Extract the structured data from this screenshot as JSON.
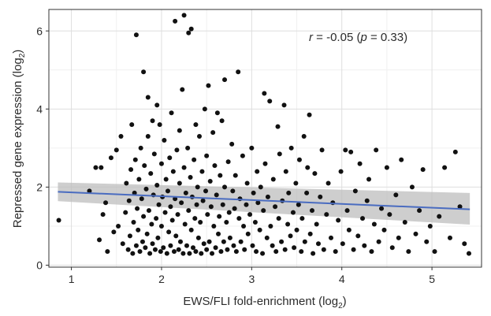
{
  "chart_data": {
    "type": "scatter",
    "xlabel": {
      "main": "EWS/FLI fold-enrichment (log",
      "sub": "2",
      "close": ")"
    },
    "ylabel": {
      "main": "Repressed gene expression (log",
      "sub": "2",
      "close": ")"
    },
    "xlim": [
      0.75,
      5.55
    ],
    "ylim": [
      -0.05,
      6.55
    ],
    "xticks": [
      {
        "value": 1,
        "label": "1"
      },
      {
        "value": 2,
        "label": "2"
      },
      {
        "value": 3,
        "label": "3"
      },
      {
        "value": 4,
        "label": "4"
      },
      {
        "value": 5,
        "label": "5"
      }
    ],
    "yticks": [
      {
        "value": 0,
        "label": "0"
      },
      {
        "value": 2,
        "label": "2"
      },
      {
        "value": 4,
        "label": "4"
      },
      {
        "value": 6,
        "label": "6"
      }
    ],
    "grid": true,
    "annotation": {
      "r_symbol": "r",
      "text": " = -0.05 (",
      "p_symbol": "p",
      "text2": " = 0.33)"
    },
    "regression": {
      "x": [
        0.85,
        5.42
      ],
      "y": [
        1.88,
        1.43
      ],
      "ci_upper": [
        2.12,
        1.85
      ],
      "ci_lower": [
        1.64,
        1.04
      ],
      "color": "#4a6cc0",
      "band_color": "#bdbdbd"
    },
    "point_color": "#111111",
    "points": [
      [
        0.86,
        1.15
      ],
      [
        1.2,
        1.9
      ],
      [
        1.27,
        2.5
      ],
      [
        1.31,
        0.65
      ],
      [
        1.33,
        2.5
      ],
      [
        1.35,
        1.3
      ],
      [
        1.38,
        1.6
      ],
      [
        1.4,
        0.35
      ],
      [
        1.44,
        2.75
      ],
      [
        1.47,
        0.85
      ],
      [
        1.5,
        2.95
      ],
      [
        1.52,
        1.0
      ],
      [
        1.55,
        3.3
      ],
      [
        1.57,
        0.55
      ],
      [
        1.6,
        1.35
      ],
      [
        1.61,
        2.1
      ],
      [
        1.63,
        0.4
      ],
      [
        1.64,
        1.65
      ],
      [
        1.65,
        0.75
      ],
      [
        1.66,
        2.45
      ],
      [
        1.67,
        3.6
      ],
      [
        1.68,
        0.3
      ],
      [
        1.69,
        1.1
      ],
      [
        1.7,
        1.85
      ],
      [
        1.71,
        2.7
      ],
      [
        1.72,
        0.5
      ],
      [
        1.72,
        5.9
      ],
      [
        1.73,
        1.45
      ],
      [
        1.74,
        0.9
      ],
      [
        1.75,
        2.2
      ],
      [
        1.76,
        0.35
      ],
      [
        1.77,
        3.0
      ],
      [
        1.78,
        1.7
      ],
      [
        1.79,
        0.6
      ],
      [
        1.8,
        4.95
      ],
      [
        1.8,
        1.25
      ],
      [
        1.81,
        2.55
      ],
      [
        1.82,
        0.45
      ],
      [
        1.83,
        1.95
      ],
      [
        1.84,
        0.8
      ],
      [
        1.85,
        3.3
      ],
      [
        1.85,
        4.3
      ],
      [
        1.86,
        1.4
      ],
      [
        1.87,
        0.3
      ],
      [
        1.88,
        2.35
      ],
      [
        1.89,
        1.05
      ],
      [
        1.9,
        3.7
      ],
      [
        1.9,
        0.55
      ],
      [
        1.91,
        1.8
      ],
      [
        1.92,
        2.85
      ],
      [
        1.93,
        0.4
      ],
      [
        1.94,
        1.2
      ],
      [
        1.95,
        4.1
      ],
      [
        1.95,
        2.05
      ],
      [
        1.96,
        0.7
      ],
      [
        1.97,
        1.55
      ],
      [
        1.98,
        3.6
      ],
      [
        1.99,
        0.35
      ],
      [
        2.0,
        2.6
      ],
      [
        2.0,
        1.0
      ],
      [
        2.01,
        1.75
      ],
      [
        2.02,
        0.45
      ],
      [
        2.03,
        3.2
      ],
      [
        2.04,
        1.35
      ],
      [
        2.05,
        2.2
      ],
      [
        2.06,
        0.3
      ],
      [
        2.07,
        1.9
      ],
      [
        2.08,
        0.85
      ],
      [
        2.09,
        2.75
      ],
      [
        2.1,
        1.5
      ],
      [
        2.1,
        0.5
      ],
      [
        2.11,
        3.9
      ],
      [
        2.12,
        1.15
      ],
      [
        2.13,
        2.4
      ],
      [
        2.14,
        0.35
      ],
      [
        2.15,
        1.7
      ],
      [
        2.15,
        6.25
      ],
      [
        2.16,
        0.75
      ],
      [
        2.17,
        2.95
      ],
      [
        2.18,
        1.3
      ],
      [
        2.19,
        0.4
      ],
      [
        2.2,
        2.1
      ],
      [
        2.2,
        3.45
      ],
      [
        2.21,
        0.6
      ],
      [
        2.22,
        1.6
      ],
      [
        2.23,
        4.5
      ],
      [
        2.24,
        0.3
      ],
      [
        2.25,
        2.5
      ],
      [
        2.25,
        6.4
      ],
      [
        2.26,
        1.05
      ],
      [
        2.27,
        1.85
      ],
      [
        2.28,
        0.5
      ],
      [
        2.29,
        3.0
      ],
      [
        2.3,
        1.4
      ],
      [
        2.3,
        5.95
      ],
      [
        2.31,
        0.3
      ],
      [
        2.32,
        2.25
      ],
      [
        2.33,
        0.9
      ],
      [
        2.33,
        6.05
      ],
      [
        2.34,
        1.75
      ],
      [
        2.35,
        0.45
      ],
      [
        2.36,
        2.7
      ],
      [
        2.37,
        1.2
      ],
      [
        2.38,
        3.6
      ],
      [
        2.38,
        0.35
      ],
      [
        2.39,
        1.55
      ],
      [
        2.4,
        2.0
      ],
      [
        2.41,
        0.7
      ],
      [
        2.42,
        3.3
      ],
      [
        2.43,
        1.1
      ],
      [
        2.44,
        0.3
      ],
      [
        2.45,
        2.4
      ],
      [
        2.46,
        1.65
      ],
      [
        2.47,
        0.55
      ],
      [
        2.48,
        4.0
      ],
      [
        2.49,
        1.9
      ],
      [
        2.5,
        0.4
      ],
      [
        2.5,
        2.8
      ],
      [
        2.51,
        1.3
      ],
      [
        2.52,
        4.6
      ],
      [
        2.53,
        0.6
      ],
      [
        2.54,
        2.15
      ],
      [
        2.55,
        1.5
      ],
      [
        2.56,
        0.3
      ],
      [
        2.57,
        3.4
      ],
      [
        2.58,
        1.0
      ],
      [
        2.59,
        2.55
      ],
      [
        2.6,
        0.45
      ],
      [
        2.61,
        1.8
      ],
      [
        2.62,
        3.9
      ],
      [
        2.63,
        0.8
      ],
      [
        2.64,
        1.25
      ],
      [
        2.65,
        2.3
      ],
      [
        2.66,
        0.35
      ],
      [
        2.67,
        3.7
      ],
      [
        2.68,
        1.55
      ],
      [
        2.69,
        0.6
      ],
      [
        2.7,
        2.0
      ],
      [
        2.7,
        4.75
      ],
      [
        2.72,
        1.1
      ],
      [
        2.73,
        0.4
      ],
      [
        2.74,
        2.65
      ],
      [
        2.75,
        1.35
      ],
      [
        2.76,
        0.7
      ],
      [
        2.78,
        3.1
      ],
      [
        2.79,
        1.9
      ],
      [
        2.8,
        0.5
      ],
      [
        2.81,
        1.45
      ],
      [
        2.82,
        2.3
      ],
      [
        2.83,
        0.35
      ],
      [
        2.85,
        4.95
      ],
      [
        2.86,
        1.2
      ],
      [
        2.87,
        1.7
      ],
      [
        2.88,
        0.6
      ],
      [
        2.9,
        2.8
      ],
      [
        2.91,
        1.0
      ],
      [
        2.92,
        0.4
      ],
      [
        2.94,
        1.55
      ],
      [
        2.95,
        2.1
      ],
      [
        2.96,
        0.8
      ],
      [
        2.98,
        1.3
      ],
      [
        3.0,
        3.0
      ],
      [
        3.01,
        0.5
      ],
      [
        3.02,
        1.85
      ],
      [
        3.04,
        1.1
      ],
      [
        3.05,
        0.35
      ],
      [
        3.06,
        2.4
      ],
      [
        3.07,
        1.6
      ],
      [
        3.09,
        0.9
      ],
      [
        3.1,
        2.0
      ],
      [
        3.12,
        0.3
      ],
      [
        3.13,
        1.4
      ],
      [
        3.14,
        4.4
      ],
      [
        3.15,
        2.6
      ],
      [
        3.17,
        0.7
      ],
      [
        3.18,
        1.75
      ],
      [
        3.2,
        4.2
      ],
      [
        3.21,
        1.0
      ],
      [
        3.23,
        0.5
      ],
      [
        3.24,
        2.2
      ],
      [
        3.26,
        1.5
      ],
      [
        3.27,
        0.35
      ],
      [
        3.29,
        3.55
      ],
      [
        3.3,
        1.2
      ],
      [
        3.31,
        2.85
      ],
      [
        3.33,
        0.6
      ],
      [
        3.34,
        1.65
      ],
      [
        3.36,
        4.1
      ],
      [
        3.37,
        0.4
      ],
      [
        3.38,
        2.4
      ],
      [
        3.4,
        1.05
      ],
      [
        3.41,
        1.85
      ],
      [
        3.43,
        0.75
      ],
      [
        3.44,
        3.0
      ],
      [
        3.46,
        1.35
      ],
      [
        3.47,
        0.45
      ],
      [
        3.49,
        2.1
      ],
      [
        3.5,
        0.9
      ],
      [
        3.52,
        1.55
      ],
      [
        3.53,
        2.7
      ],
      [
        3.55,
        0.35
      ],
      [
        3.56,
        1.2
      ],
      [
        3.58,
        3.3
      ],
      [
        3.59,
        0.6
      ],
      [
        3.61,
        1.85
      ],
      [
        3.62,
        2.5
      ],
      [
        3.64,
        3.85
      ],
      [
        3.65,
        0.8
      ],
      [
        3.67,
        1.4
      ],
      [
        3.68,
        0.3
      ],
      [
        3.7,
        2.35
      ],
      [
        3.72,
        1.05
      ],
      [
        3.74,
        0.55
      ],
      [
        3.76,
        1.75
      ],
      [
        3.78,
        2.95
      ],
      [
        3.8,
        0.4
      ],
      [
        3.83,
        1.3
      ],
      [
        3.85,
        2.1
      ],
      [
        3.88,
        0.7
      ],
      [
        3.9,
        1.6
      ],
      [
        3.93,
        0.35
      ],
      [
        3.96,
        1.15
      ],
      [
        3.99,
        2.4
      ],
      [
        4.01,
        0.55
      ],
      [
        4.04,
        2.95
      ],
      [
        4.06,
        1.4
      ],
      [
        4.08,
        0.9
      ],
      [
        4.1,
        2.9
      ],
      [
        4.13,
        0.4
      ],
      [
        4.15,
        1.9
      ],
      [
        4.18,
        0.75
      ],
      [
        4.2,
        2.6
      ],
      [
        4.23,
        1.2
      ],
      [
        4.25,
        0.5
      ],
      [
        4.28,
        1.65
      ],
      [
        4.3,
        2.2
      ],
      [
        4.33,
        0.35
      ],
      [
        4.36,
        1.05
      ],
      [
        4.38,
        2.95
      ],
      [
        4.41,
        0.6
      ],
      [
        4.44,
        1.45
      ],
      [
        4.47,
        0.9
      ],
      [
        4.5,
        2.5
      ],
      [
        4.53,
        1.3
      ],
      [
        4.56,
        0.45
      ],
      [
        4.6,
        1.8
      ],
      [
        4.63,
        0.7
      ],
      [
        4.66,
        2.7
      ],
      [
        4.7,
        1.1
      ],
      [
        4.74,
        0.35
      ],
      [
        4.78,
        2.0
      ],
      [
        4.82,
        0.8
      ],
      [
        4.86,
        1.4
      ],
      [
        4.9,
        2.45
      ],
      [
        4.94,
        0.6
      ],
      [
        4.98,
        1.0
      ],
      [
        5.03,
        0.35
      ],
      [
        5.08,
        1.25
      ],
      [
        5.14,
        2.5
      ],
      [
        5.2,
        0.7
      ],
      [
        5.26,
        2.9
      ],
      [
        5.31,
        1.5
      ],
      [
        5.36,
        0.55
      ],
      [
        5.41,
        0.3
      ]
    ]
  }
}
